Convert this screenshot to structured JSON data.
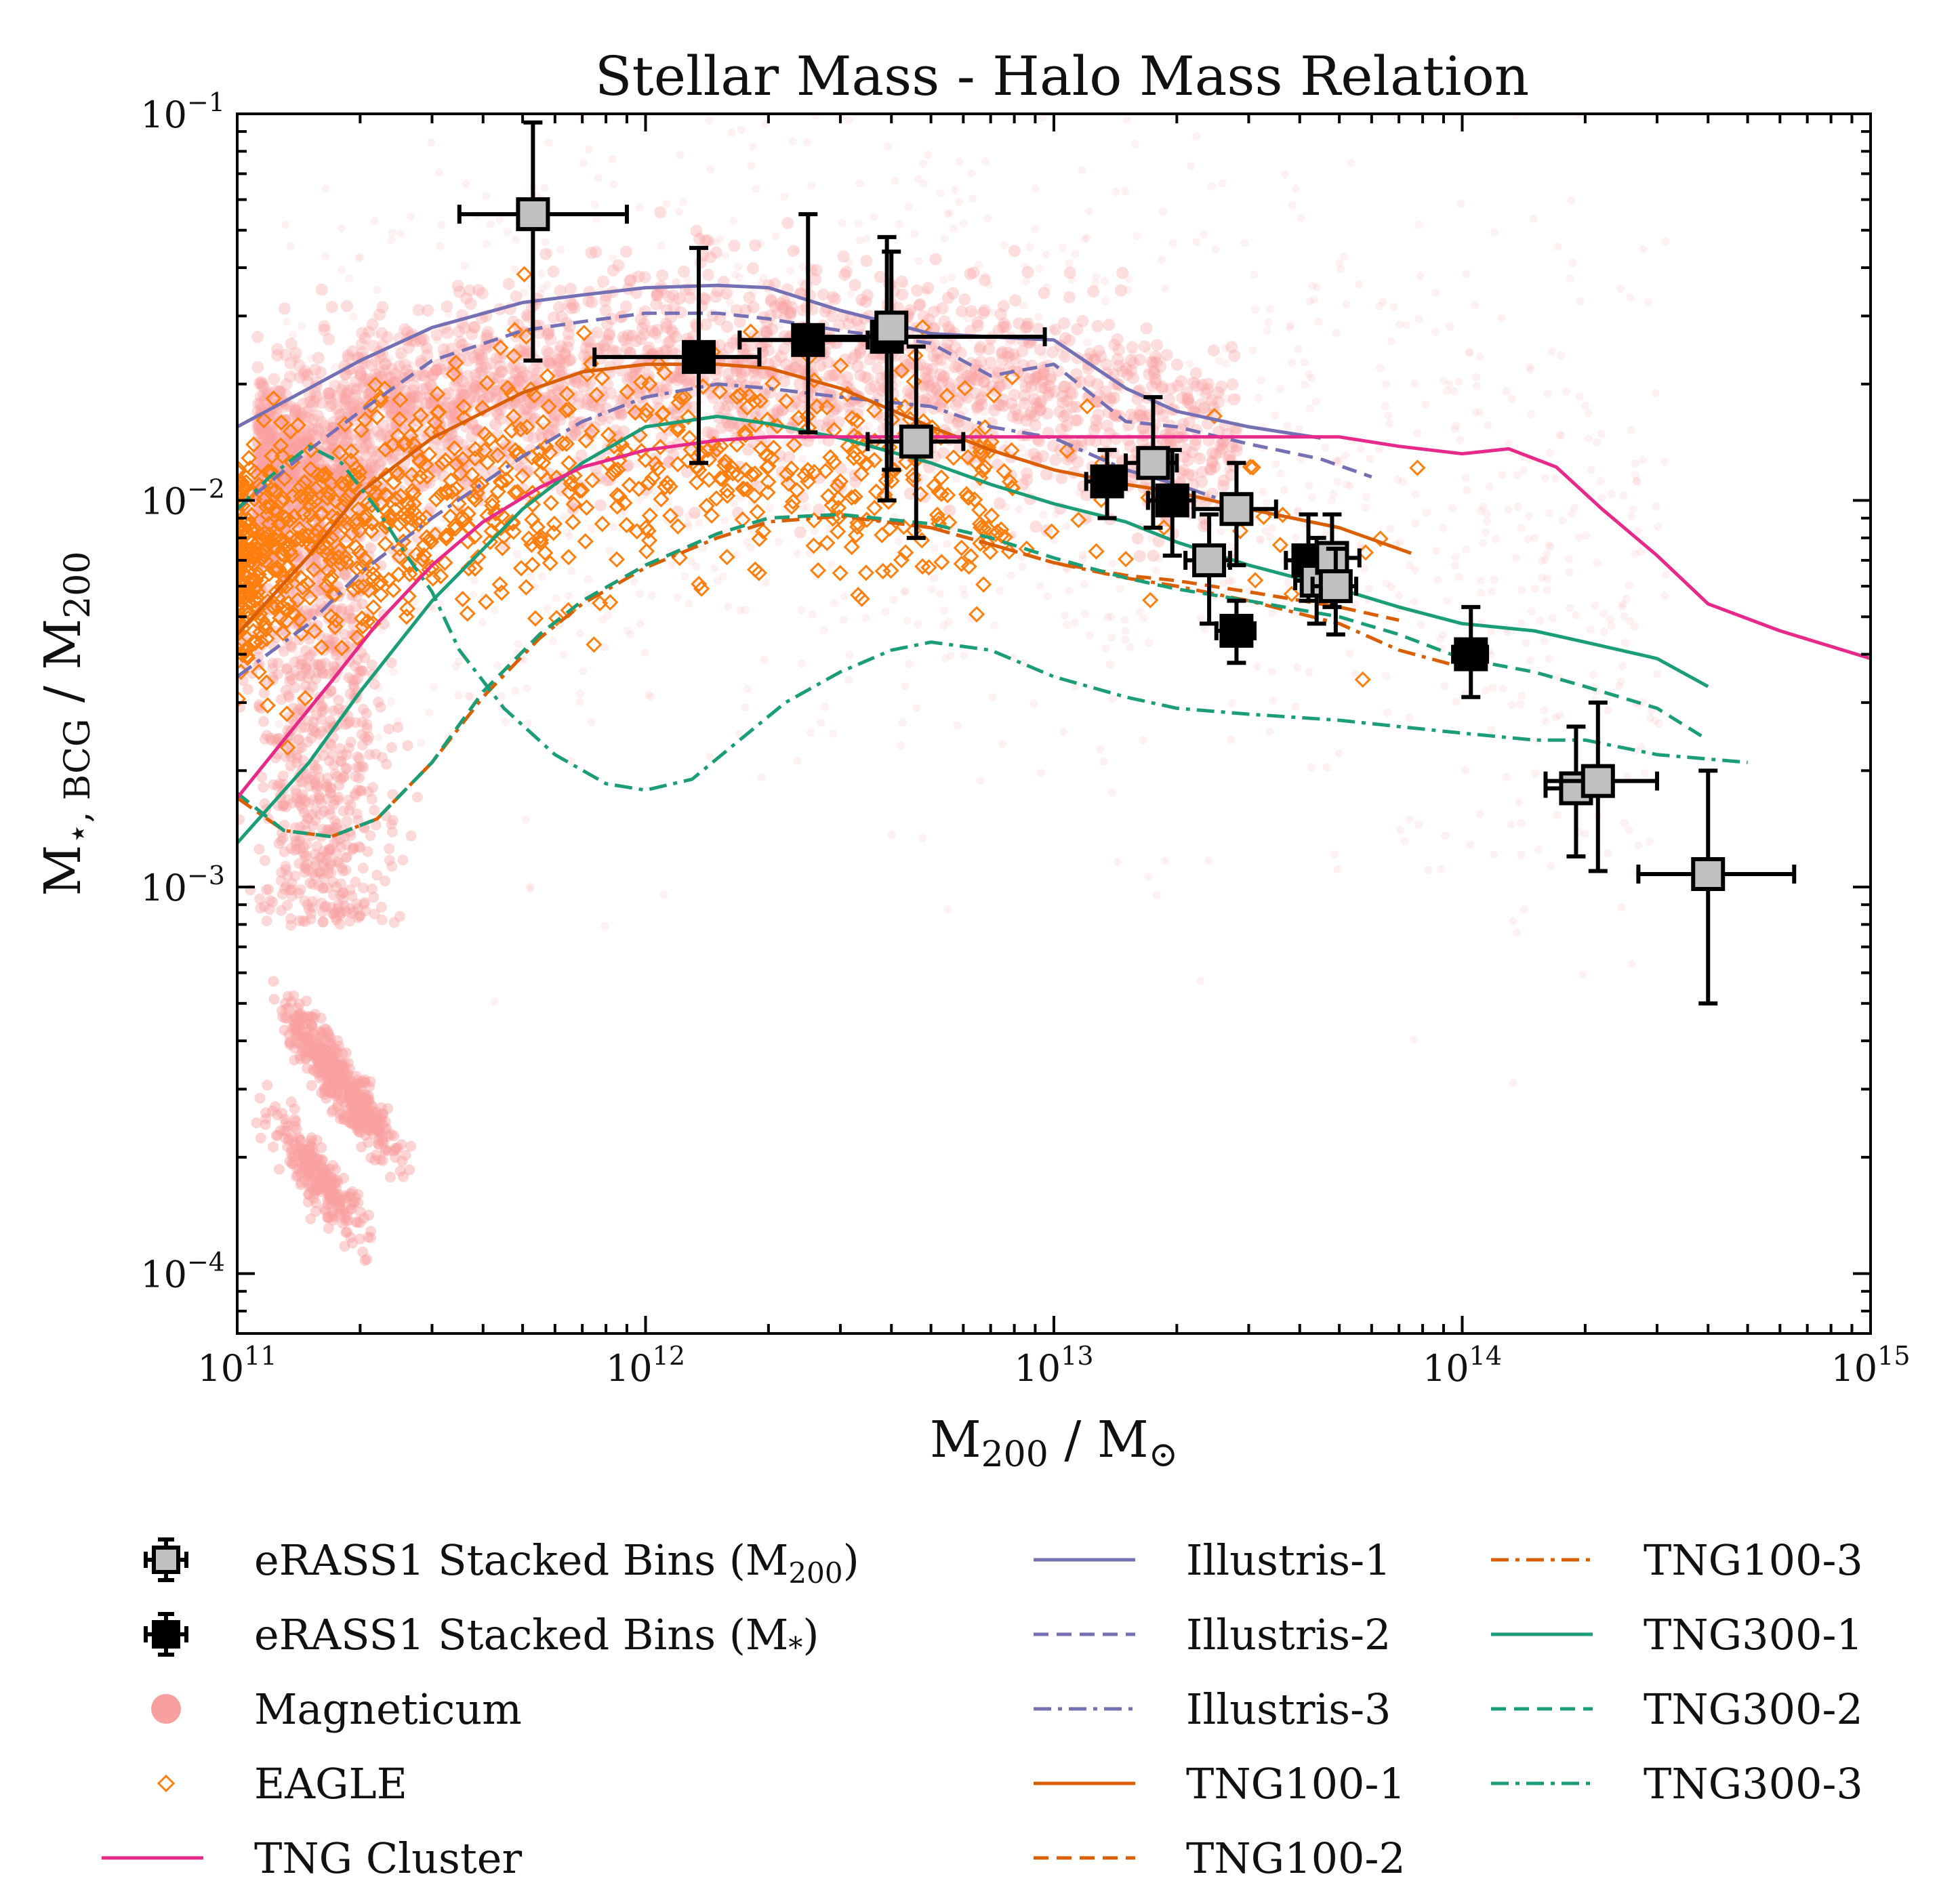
{
  "chart_data": {
    "type": "scatter",
    "title": "Stellar Mass - Halo Mass Relation",
    "xlabel": "M200 / M⊙",
    "ylabel": "M⋆,BCG / M200",
    "xscale": "log",
    "yscale": "log",
    "xlim": [
      100000000000.0,
      1000000000000000.0
    ],
    "ylim": [
      7e-05,
      0.1
    ],
    "x_ticks": [
      {
        "base": "10",
        "exp": "11",
        "value": 100000000000.0
      },
      {
        "base": "10",
        "exp": "12",
        "value": 1000000000000.0
      },
      {
        "base": "10",
        "exp": "13",
        "value": 10000000000000.0
      },
      {
        "base": "10",
        "exp": "14",
        "value": 100000000000000.0
      },
      {
        "base": "10",
        "exp": "15",
        "value": 1000000000000000.0
      }
    ],
    "y_ticks": [
      {
        "base": "10",
        "exp": "−4",
        "value": 0.0001
      },
      {
        "base": "10",
        "exp": "−3",
        "value": 0.001
      },
      {
        "base": "10",
        "exp": "−2",
        "value": 0.01
      },
      {
        "base": "10",
        "exp": "−1",
        "value": 0.1
      }
    ],
    "colors": {
      "erass_m200": "#c0c0c0",
      "erass_mstar": "#000000",
      "magneticum": "#f8a0a0",
      "eagle": "#ff7f0e",
      "tng_cluster": "#e7298a",
      "illustris": "#7570b3",
      "tng100": "#d95f02",
      "tng300": "#1b9e77"
    },
    "erass1_m200_bins": [
      {
        "x": 530000000000.0,
        "y": 0.055,
        "xlo": 350000000000.0,
        "xhi": 900000000000.0,
        "ylo": 0.023,
        "yhi": 0.095
      },
      {
        "x": 4000000000000.0,
        "y": 0.028,
        "xlo": 3800000000000.0,
        "xhi": 4200000000000.0,
        "ylo": 0.012,
        "yhi": 0.044
      },
      {
        "x": 4600000000000.0,
        "y": 0.0142,
        "xlo": 3500000000000.0,
        "xhi": 6000000000000.0,
        "ylo": 0.008,
        "yhi": 0.025
      },
      {
        "x": 17500000000000.0,
        "y": 0.0125,
        "xlo": 15000000000000.0,
        "xhi": 20000000000000.0,
        "ylo": 0.0085,
        "yhi": 0.0185
      },
      {
        "x": 24000000000000.0,
        "y": 0.007,
        "xlo": 21000000000000.0,
        "xhi": 27000000000000.0,
        "ylo": 0.0048,
        "yhi": 0.0092
      },
      {
        "x": 28000000000000.0,
        "y": 0.0095,
        "xlo": 22000000000000.0,
        "xhi": 35000000000000.0,
        "ylo": 0.0068,
        "yhi": 0.0125
      },
      {
        "x": 44000000000000.0,
        "y": 0.0062,
        "xlo": 39000000000000.0,
        "xhi": 50000000000000.0,
        "ylo": 0.0048,
        "yhi": 0.008
      },
      {
        "x": 48000000000000.0,
        "y": 0.0071,
        "xlo": 41000000000000.0,
        "xhi": 56000000000000.0,
        "ylo": 0.0053,
        "yhi": 0.0092
      },
      {
        "x": 49000000000000.0,
        "y": 0.006,
        "xlo": 43000000000000.0,
        "xhi": 55000000000000.0,
        "ylo": 0.0045,
        "yhi": 0.0075
      },
      {
        "x": 190000000000000.0,
        "y": 0.0018,
        "xlo": 160000000000000.0,
        "xhi": 230000000000000.0,
        "ylo": 0.0012,
        "yhi": 0.0026
      },
      {
        "x": 215000000000000.0,
        "y": 0.00188,
        "xlo": 160000000000000.0,
        "xhi": 300000000000000.0,
        "ylo": 0.0011,
        "yhi": 0.003
      },
      {
        "x": 400000000000000.0,
        "y": 0.00108,
        "xlo": 270000000000000.0,
        "xhi": 650000000000000.0,
        "ylo": 0.0005,
        "yhi": 0.002
      }
    ],
    "erass1_mstar_bins": [
      {
        "x": 1350000000000.0,
        "y": 0.0235,
        "xlo": 750000000000.0,
        "xhi": 1900000000000.0,
        "ylo": 0.0125,
        "yhi": 0.045
      },
      {
        "x": 2500000000000.0,
        "y": 0.026,
        "xlo": 1700000000000.0,
        "xhi": 3500000000000.0,
        "ylo": 0.015,
        "yhi": 0.055
      },
      {
        "x": 3900000000000.0,
        "y": 0.0265,
        "xlo": 2700000000000.0,
        "xhi": 9500000000000.0,
        "ylo": 0.01,
        "yhi": 0.048
      },
      {
        "x": 13500000000000.0,
        "y": 0.0112,
        "xlo": 12000000000000.0,
        "xhi": 15000000000000.0,
        "ylo": 0.009,
        "yhi": 0.0135
      },
      {
        "x": 19500000000000.0,
        "y": 0.01,
        "xlo": 17000000000000.0,
        "xhi": 22000000000000.0,
        "ylo": 0.0072,
        "yhi": 0.0135
      },
      {
        "x": 28000000000000.0,
        "y": 0.0046,
        "xlo": 25000000000000.0,
        "xhi": 31000000000000.0,
        "ylo": 0.0038,
        "yhi": 0.0055
      },
      {
        "x": 42000000000000.0,
        "y": 0.007,
        "xlo": 37000000000000.0,
        "xhi": 47000000000000.0,
        "ylo": 0.0055,
        "yhi": 0.0092
      },
      {
        "x": 105000000000000.0,
        "y": 0.004,
        "xlo": 95000000000000.0,
        "xhi": 115000000000000.0,
        "ylo": 0.0031,
        "yhi": 0.0053
      }
    ],
    "series": [
      {
        "name": "Illustris-1",
        "color": "#7570b3",
        "dash": "solid",
        "x": [
          100000000000.0,
          150000000000.0,
          200000000000.0,
          300000000000.0,
          500000000000.0,
          700000000000.0,
          1000000000000.0,
          1500000000000.0,
          2000000000000.0,
          3000000000000.0,
          5000000000000.0,
          7000000000000.0,
          10000000000000.0,
          15000000000000.0,
          20000000000000.0,
          30000000000000.0,
          45000000000000.0
        ],
        "y": [
          0.0155,
          0.0195,
          0.023,
          0.028,
          0.0325,
          0.034,
          0.0355,
          0.036,
          0.0355,
          0.031,
          0.027,
          0.0265,
          0.026,
          0.0195,
          0.017,
          0.0155,
          0.0145
        ]
      },
      {
        "name": "Illustris-2",
        "color": "#7570b3",
        "dash": "dashed",
        "x": [
          100000000000.0,
          150000000000.0,
          200000000000.0,
          300000000000.0,
          500000000000.0,
          700000000000.0,
          1000000000000.0,
          1500000000000.0,
          2000000000000.0,
          3000000000000.0,
          5000000000000.0,
          7000000000000.0,
          10000000000000.0,
          15000000000000.0,
          20000000000000.0,
          30000000000000.0,
          45000000000000.0,
          60000000000000.0
        ],
        "y": [
          0.0095,
          0.0135,
          0.017,
          0.023,
          0.0275,
          0.029,
          0.0305,
          0.0305,
          0.0295,
          0.0275,
          0.0255,
          0.021,
          0.0225,
          0.016,
          0.0155,
          0.014,
          0.0128,
          0.0115
        ]
      },
      {
        "name": "Illustris-3",
        "color": "#7570b3",
        "dash": "dashdot",
        "x": [
          100000000000.0,
          150000000000.0,
          200000000000.0,
          300000000000.0,
          500000000000.0,
          700000000000.0,
          1000000000000.0,
          1500000000000.0,
          2000000000000.0,
          3000000000000.0,
          5000000000000.0,
          7000000000000.0,
          10000000000000.0,
          15000000000000.0,
          20000000000000.0,
          30000000000000.0,
          50000000000000.0
        ],
        "y": [
          0.0035,
          0.0048,
          0.0065,
          0.009,
          0.013,
          0.016,
          0.0185,
          0.02,
          0.0195,
          0.0185,
          0.0175,
          0.0155,
          0.0145,
          0.012,
          0.011,
          0.0095,
          0.0085
        ]
      },
      {
        "name": "TNG100-1",
        "color": "#d95f02",
        "dash": "solid",
        "x": [
          100000000000.0,
          150000000000.0,
          200000000000.0,
          300000000000.0,
          500000000000.0,
          700000000000.0,
          1000000000000.0,
          1500000000000.0,
          2000000000000.0,
          3000000000000.0,
          5000000000000.0,
          7000000000000.0,
          10000000000000.0,
          15000000000000.0,
          20000000000000.0,
          30000000000000.0,
          50000000000000.0,
          75000000000000.0
        ],
        "y": [
          0.0045,
          0.0072,
          0.0105,
          0.0145,
          0.019,
          0.0215,
          0.0225,
          0.0225,
          0.022,
          0.0195,
          0.0155,
          0.0135,
          0.012,
          0.011,
          0.0105,
          0.0095,
          0.0085,
          0.0073
        ]
      },
      {
        "name": "TNG100-2",
        "color": "#d95f02",
        "dash": "dashed",
        "x": [
          100000000000.0,
          130000000000.0,
          170000000000.0,
          220000000000.0,
          300000000000.0,
          400000000000.0,
          550000000000.0,
          700000000000.0,
          1000000000000.0,
          1500000000000.0,
          2000000000000.0,
          3000000000000.0,
          5000000000000.0,
          7000000000000.0,
          10000000000000.0,
          15000000000000.0,
          20000000000000.0,
          30000000000000.0,
          50000000000000.0,
          70000000000000.0
        ],
        "y": [
          0.00175,
          0.0014,
          0.00135,
          0.0015,
          0.0021,
          0.0032,
          0.0045,
          0.0055,
          0.0068,
          0.0082,
          0.009,
          0.0092,
          0.0085,
          0.0077,
          0.0069,
          0.0064,
          0.0062,
          0.0058,
          0.0053,
          0.0049
        ]
      },
      {
        "name": "TNG100-3",
        "color": "#d95f02",
        "dash": "dashdot",
        "x": [
          100000000000.0,
          130000000000.0,
          170000000000.0,
          220000000000.0,
          300000000000.0,
          400000000000.0,
          550000000000.0,
          700000000000.0,
          1000000000000.0,
          1500000000000.0,
          2000000000000.0,
          3000000000000.0,
          5000000000000.0,
          7000000000000.0,
          10000000000000.0,
          15000000000000.0,
          20000000000000.0,
          30000000000000.0,
          50000000000000.0,
          70000000000000.0,
          100000000000000.0
        ],
        "y": [
          0.0017,
          0.0014,
          0.00135,
          0.0015,
          0.0021,
          0.0031,
          0.0044,
          0.0054,
          0.0067,
          0.008,
          0.0088,
          0.0091,
          0.0085,
          0.0077,
          0.0069,
          0.0063,
          0.006,
          0.0055,
          0.0048,
          0.0041,
          0.0037
        ]
      },
      {
        "name": "TNG300-1",
        "color": "#1b9e77",
        "dash": "solid",
        "x": [
          100000000000.0,
          150000000000.0,
          200000000000.0,
          300000000000.0,
          500000000000.0,
          700000000000.0,
          1000000000000.0,
          1500000000000.0,
          2000000000000.0,
          3000000000000.0,
          5000000000000.0,
          7000000000000.0,
          10000000000000.0,
          15000000000000.0,
          20000000000000.0,
          30000000000000.0,
          50000000000000.0,
          70000000000000.0,
          100000000000000.0,
          150000000000000.0,
          200000000000000.0,
          300000000000000.0,
          400000000000000.0
        ],
        "y": [
          0.0013,
          0.0021,
          0.0032,
          0.0055,
          0.0095,
          0.0125,
          0.0155,
          0.0165,
          0.0158,
          0.0145,
          0.0125,
          0.011,
          0.0098,
          0.0088,
          0.0078,
          0.0068,
          0.0059,
          0.0053,
          0.0048,
          0.0046,
          0.0043,
          0.0039,
          0.0033
        ]
      },
      {
        "name": "TNG300-2",
        "color": "#1b9e77",
        "dash": "dashed",
        "x": [
          100000000000.0,
          130000000000.0,
          170000000000.0,
          220000000000.0,
          300000000000.0,
          400000000000.0,
          550000000000.0,
          700000000000.0,
          1000000000000.0,
          1500000000000.0,
          2000000000000.0,
          3000000000000.0,
          5000000000000.0,
          7000000000000.0,
          10000000000000.0,
          15000000000000.0,
          20000000000000.0,
          30000000000000.0,
          50000000000000.0,
          70000000000000.0,
          100000000000000.0,
          150000000000000.0,
          200000000000000.0,
          300000000000000.0,
          400000000000000.0
        ],
        "y": [
          0.00175,
          0.0014,
          0.00135,
          0.0015,
          0.0021,
          0.0032,
          0.0045,
          0.0055,
          0.0068,
          0.0082,
          0.009,
          0.0092,
          0.0087,
          0.008,
          0.0071,
          0.0063,
          0.0059,
          0.0055,
          0.005,
          0.0045,
          0.0039,
          0.0036,
          0.0033,
          0.0029,
          0.0024
        ]
      },
      {
        "name": "TNG300-3",
        "color": "#1b9e77",
        "dash": "dashdot",
        "x": [
          100000000000.0,
          120000000000.0,
          150000000000.0,
          180000000000.0,
          220000000000.0,
          260000000000.0,
          300000000000.0,
          350000000000.0,
          450000000000.0,
          600000000000.0,
          800000000000.0,
          1000000000000.0,
          1300000000000.0,
          1700000000000.0,
          2200000000000.0,
          3000000000000.0,
          4000000000000.0,
          5000000000000.0,
          7000000000000.0,
          10000000000000.0,
          15000000000000.0,
          20000000000000.0,
          30000000000000.0,
          50000000000000.0,
          70000000000000.0,
          100000000000000.0,
          150000000000000.0,
          200000000000000.0,
          300000000000000.0,
          500000000000000.0
        ],
        "y": [
          0.0095,
          0.0115,
          0.0138,
          0.0125,
          0.0095,
          0.0072,
          0.0058,
          0.0041,
          0.0029,
          0.0022,
          0.00185,
          0.00178,
          0.0019,
          0.0024,
          0.003,
          0.0036,
          0.0041,
          0.0043,
          0.0041,
          0.0035,
          0.0031,
          0.0029,
          0.0028,
          0.0027,
          0.0026,
          0.0025,
          0.0024,
          0.0024,
          0.0022,
          0.0021
        ]
      },
      {
        "name": "TNG Cluster",
        "color": "#e7298a",
        "dash": "solid",
        "x": [
          100000000000.0,
          130000000000.0,
          170000000000.0,
          220000000000.0,
          300000000000.0,
          400000000000.0,
          550000000000.0,
          700000000000.0,
          1000000000000.0,
          1500000000000.0,
          2000000000000.0,
          3000000000000.0,
          5000000000000.0,
          7000000000000.0,
          10000000000000.0,
          15000000000000.0,
          20000000000000.0,
          30000000000000.0,
          50000000000000.0,
          70000000000000.0,
          100000000000000.0,
          130000000000000.0,
          170000000000000.0,
          220000000000000.0,
          300000000000000.0,
          400000000000000.0,
          600000000000000.0,
          1000000000000000.0
        ],
        "y": [
          0.0017,
          0.0024,
          0.0034,
          0.0048,
          0.0068,
          0.0088,
          0.0108,
          0.0122,
          0.0135,
          0.0143,
          0.0146,
          0.0146,
          0.0146,
          0.0146,
          0.0146,
          0.0146,
          0.0146,
          0.0146,
          0.0146,
          0.0138,
          0.0132,
          0.0136,
          0.0122,
          0.0095,
          0.0072,
          0.0054,
          0.0046,
          0.0039
        ]
      }
    ],
    "legend": {
      "placement": "below plot, three columns",
      "entries": [
        {
          "label": "eRASS1 Stacked Bins (M",
          "sub": "200",
          "tail": ")",
          "kind": "sq-grey",
          "col": 0,
          "row": 0
        },
        {
          "label": "eRASS1 Stacked Bins (M",
          "sub": "*",
          "tail": ")",
          "kind": "sq-black",
          "col": 0,
          "row": 1
        },
        {
          "label": "Magneticum",
          "kind": "dot",
          "col": 0,
          "row": 2
        },
        {
          "label": "EAGLE",
          "kind": "diamond",
          "col": 0,
          "row": 3
        },
        {
          "label": "TNG Cluster",
          "kind": "line",
          "series": "TNG Cluster",
          "col": 0,
          "row": 4
        },
        {
          "label": "Illustris-1",
          "kind": "line",
          "series": "Illustris-1",
          "col": 1,
          "row": 0
        },
        {
          "label": "Illustris-2",
          "kind": "line",
          "series": "Illustris-2",
          "col": 1,
          "row": 1
        },
        {
          "label": "Illustris-3",
          "kind": "line",
          "series": "Illustris-3",
          "col": 1,
          "row": 2
        },
        {
          "label": "TNG100-1",
          "kind": "line",
          "series": "TNG100-1",
          "col": 1,
          "row": 3
        },
        {
          "label": "TNG100-2",
          "kind": "line",
          "series": "TNG100-2",
          "col": 1,
          "row": 4
        },
        {
          "label": "TNG100-3",
          "kind": "line",
          "series": "TNG100-3",
          "col": 2,
          "row": 0
        },
        {
          "label": "TNG300-1",
          "kind": "line",
          "series": "TNG300-1",
          "col": 2,
          "row": 1
        },
        {
          "label": "TNG300-2",
          "kind": "line",
          "series": "TNG300-2",
          "col": 2,
          "row": 2
        },
        {
          "label": "TNG300-3",
          "kind": "line",
          "series": "TNG300-3",
          "col": 2,
          "row": 3
        }
      ]
    }
  }
}
